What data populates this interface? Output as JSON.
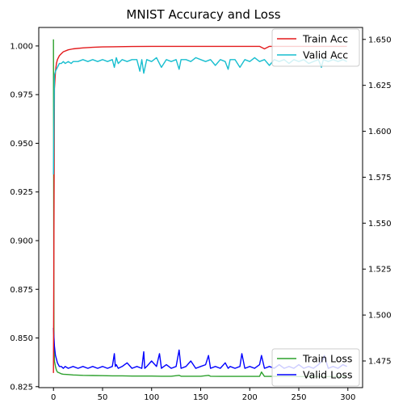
{
  "chart_data": {
    "type": "line",
    "title": "MNIST Accuracy and Loss",
    "xlabel": "",
    "ylabel": "",
    "xlim": [
      -15,
      315
    ],
    "x_ticks": [
      "0",
      "50",
      "100",
      "150",
      "200",
      "250",
      "300"
    ],
    "x_tick_values": [
      0,
      50,
      100,
      150,
      200,
      250,
      300
    ],
    "left_axis": {
      "ylim": [
        0.8245,
        1.0095
      ],
      "ticks": [
        "0.825",
        "0.850",
        "0.875",
        "0.900",
        "0.925",
        "0.950",
        "0.975",
        "1.000"
      ],
      "tick_values": [
        0.825,
        0.85,
        0.875,
        0.9,
        0.925,
        0.95,
        0.975,
        1.0
      ]
    },
    "right_axis": {
      "ylim": [
        1.4605,
        1.6565
      ],
      "ticks": [
        "1.475",
        "1.500",
        "1.525",
        "1.550",
        "1.575",
        "1.600",
        "1.625",
        "1.650"
      ],
      "tick_values": [
        1.475,
        1.5,
        1.525,
        1.55,
        1.575,
        1.6,
        1.625,
        1.65
      ]
    },
    "series": [
      {
        "name": "Train Acc",
        "axis": "left",
        "color": "#e31a1c",
        "x": [
          0,
          1,
          2,
          3,
          4,
          6,
          8,
          10,
          15,
          20,
          30,
          40,
          50,
          60,
          80,
          100,
          120,
          150,
          180,
          210,
          215,
          220,
          240,
          260,
          280,
          299
        ],
        "y": [
          0.832,
          0.978,
          0.987,
          0.991,
          0.993,
          0.995,
          0.996,
          0.997,
          0.998,
          0.9985,
          0.999,
          0.9993,
          0.9995,
          0.9996,
          0.9997,
          0.9998,
          0.9998,
          0.9998,
          0.9998,
          0.9998,
          0.9985,
          0.9998,
          0.9998,
          0.9998,
          0.9998,
          0.9998
        ]
      },
      {
        "name": "Valid Acc",
        "axis": "left",
        "color": "#17becf",
        "x": [
          0,
          1,
          2,
          3,
          4,
          5,
          6,
          8,
          10,
          12,
          15,
          18,
          20,
          25,
          30,
          35,
          40,
          45,
          50,
          55,
          60,
          62,
          64,
          66,
          70,
          75,
          80,
          85,
          88,
          90,
          92,
          95,
          100,
          105,
          110,
          115,
          120,
          125,
          128,
          130,
          135,
          140,
          145,
          150,
          155,
          160,
          165,
          170,
          175,
          178,
          180,
          185,
          190,
          195,
          200,
          205,
          210,
          215,
          220,
          225,
          230,
          235,
          240,
          245,
          250,
          255,
          260,
          265,
          270,
          273,
          275,
          280,
          285,
          290,
          295,
          299
        ],
        "y": [
          0.934,
          0.985,
          0.987,
          0.988,
          0.989,
          0.99,
          0.991,
          0.991,
          0.992,
          0.991,
          0.992,
          0.991,
          0.992,
          0.992,
          0.993,
          0.992,
          0.993,
          0.992,
          0.993,
          0.992,
          0.993,
          0.989,
          0.994,
          0.991,
          0.993,
          0.992,
          0.993,
          0.993,
          0.987,
          0.993,
          0.986,
          0.993,
          0.992,
          0.994,
          0.989,
          0.993,
          0.992,
          0.993,
          0.988,
          0.993,
          0.993,
          0.992,
          0.994,
          0.993,
          0.992,
          0.993,
          0.99,
          0.993,
          0.992,
          0.988,
          0.993,
          0.993,
          0.989,
          0.993,
          0.992,
          0.994,
          0.992,
          0.993,
          0.99,
          0.993,
          0.992,
          0.993,
          0.991,
          0.993,
          0.992,
          0.993,
          0.991,
          0.992,
          0.993,
          0.989,
          0.993,
          0.992,
          0.993,
          0.992,
          0.993,
          0.992
        ]
      },
      {
        "name": "Train Loss",
        "axis": "right",
        "color": "#2ca02c",
        "x": [
          0,
          0.5,
          1,
          2,
          3,
          4,
          6,
          8,
          10,
          15,
          20,
          30,
          40,
          50,
          60,
          70,
          80,
          90,
          100,
          110,
          120,
          128,
          130,
          140,
          150,
          158,
          160,
          170,
          180,
          190,
          200,
          210,
          212,
          215,
          220,
          230,
          240,
          250,
          260,
          270,
          280,
          290,
          299
        ],
        "y": [
          1.65,
          1.485,
          1.475,
          1.472,
          1.47,
          1.469,
          1.4685,
          1.468,
          1.4678,
          1.4676,
          1.4674,
          1.4672,
          1.4671,
          1.467,
          1.4669,
          1.4669,
          1.4668,
          1.4668,
          1.4668,
          1.4667,
          1.4667,
          1.4672,
          1.4667,
          1.4667,
          1.4667,
          1.4672,
          1.4667,
          1.4666,
          1.4666,
          1.4666,
          1.4666,
          1.4666,
          1.469,
          1.4666,
          1.4666,
          1.4666,
          1.4666,
          1.4665,
          1.4665,
          1.4665,
          1.4665,
          1.4665,
          1.4665
        ]
      },
      {
        "name": "Valid Loss",
        "axis": "right",
        "color": "#0000ff",
        "x": [
          0,
          1,
          2,
          3,
          4,
          5,
          6,
          8,
          10,
          12,
          15,
          20,
          25,
          30,
          35,
          40,
          45,
          50,
          55,
          60,
          62,
          63,
          64,
          66,
          70,
          75,
          80,
          85,
          90,
          92,
          93,
          95,
          100,
          105,
          108,
          110,
          115,
          120,
          125,
          128,
          130,
          135,
          140,
          145,
          150,
          155,
          158,
          160,
          165,
          170,
          175,
          178,
          180,
          185,
          190,
          192,
          195,
          200,
          205,
          210,
          212,
          215,
          220,
          225,
          230,
          235,
          240,
          245,
          250,
          255,
          260,
          265,
          270,
          275,
          276,
          280,
          285,
          290,
          295,
          299
        ],
        "y": [
          1.493,
          1.483,
          1.478,
          1.476,
          1.474,
          1.473,
          1.472,
          1.472,
          1.471,
          1.472,
          1.471,
          1.472,
          1.471,
          1.472,
          1.471,
          1.472,
          1.471,
          1.472,
          1.471,
          1.472,
          1.479,
          1.472,
          1.473,
          1.471,
          1.472,
          1.474,
          1.471,
          1.472,
          1.471,
          1.48,
          1.471,
          1.472,
          1.475,
          1.472,
          1.479,
          1.471,
          1.473,
          1.471,
          1.472,
          1.481,
          1.471,
          1.472,
          1.475,
          1.471,
          1.472,
          1.473,
          1.478,
          1.471,
          1.472,
          1.471,
          1.474,
          1.471,
          1.472,
          1.471,
          1.472,
          1.479,
          1.471,
          1.472,
          1.471,
          1.473,
          1.478,
          1.471,
          1.472,
          1.471,
          1.473,
          1.471,
          1.472,
          1.471,
          1.473,
          1.471,
          1.472,
          1.471,
          1.473,
          1.476,
          1.478,
          1.471,
          1.472,
          1.471,
          1.473,
          1.472
        ]
      }
    ],
    "legends": [
      {
        "placement": "upper-right",
        "entries": [
          "Train Acc",
          "Valid Acc"
        ]
      },
      {
        "placement": "lower-right",
        "entries": [
          "Train Loss",
          "Valid Loss"
        ]
      }
    ],
    "grid": false
  }
}
